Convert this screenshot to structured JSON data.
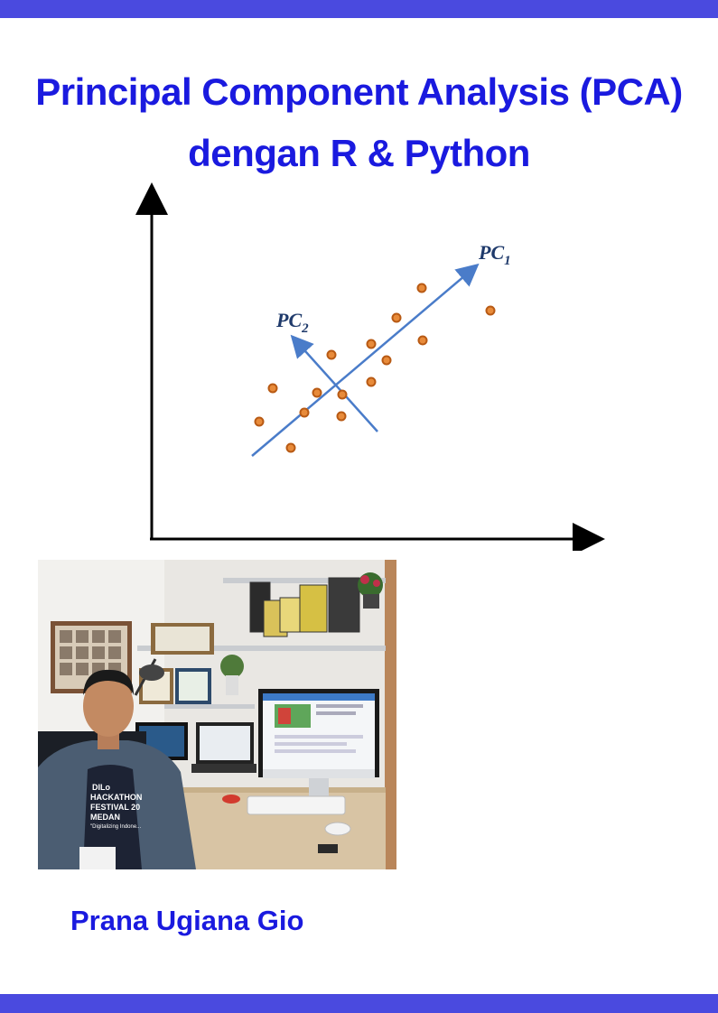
{
  "cover": {
    "title_line1": "Principal Component Analysis (PCA)",
    "title_line2": "dengan R & Python",
    "author": "Prana Ugiana Gio"
  },
  "diagram": {
    "pc1_label": "PC",
    "pc1_sub": "1",
    "pc2_label": "PC",
    "pc2_sub": "2"
  },
  "photo": {
    "shirt_line1": "DILo",
    "shirt_line2": "HACKATHON",
    "shirt_line3": "FESTIVAL 20",
    "shirt_line4": "MEDAN",
    "shirt_line5": "\"Digitalizing Indone..."
  },
  "colors": {
    "accent_bar": "#4a4adf",
    "title": "#1a1adf",
    "arrow": "#4a7cc9",
    "point_fill": "#e88b3a"
  }
}
